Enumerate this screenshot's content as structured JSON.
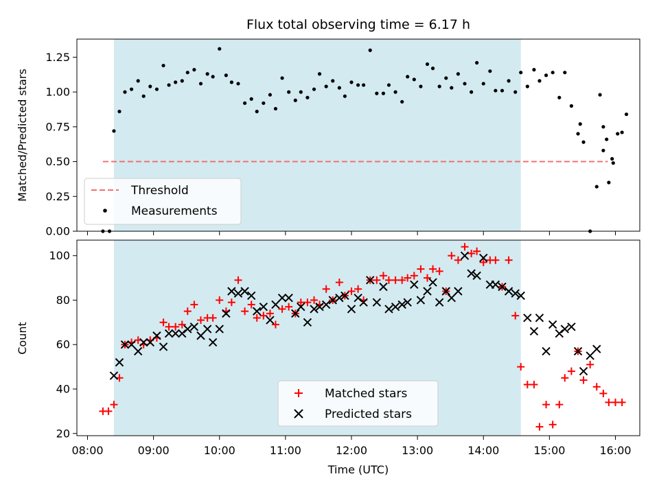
{
  "chart_data": {
    "type": "scatter",
    "title": "Flux total observing time = 6.17 h",
    "xlabel": "Time (UTC)",
    "xlim": [
      "08:00",
      "16:00"
    ],
    "x_ticks": [
      "08:00",
      "09:00",
      "10:00",
      "11:00",
      "12:00",
      "13:00",
      "14:00",
      "15:00",
      "16:00"
    ],
    "observing_window": {
      "start": "08:24",
      "end": "14:34",
      "color": "#d3eaf0"
    },
    "panels": [
      {
        "name": "ratio",
        "ylabel": "Matched/Predicted stars",
        "ylim": [
          0,
          1.38
        ],
        "y_ticks": [
          "0.00",
          "0.25",
          "0.50",
          "0.75",
          "1.00",
          "1.25"
        ],
        "threshold": {
          "name": "Threshold",
          "value": 0.5,
          "x_start": "08:14",
          "x_end": "15:53",
          "color": "#f07070"
        },
        "series": [
          {
            "name": "Measurements",
            "marker": "dot",
            "color": "#000000",
            "x": [
              "08:14",
              "08:20",
              "08:24",
              "08:29",
              "08:34",
              "08:40",
              "08:46",
              "08:51",
              "08:57",
              "09:03",
              "09:09",
              "09:14",
              "09:20",
              "09:26",
              "09:31",
              "09:37",
              "09:43",
              "09:49",
              "09:54",
              "10:00",
              "10:06",
              "10:11",
              "10:17",
              "10:23",
              "10:29",
              "10:34",
              "10:40",
              "10:46",
              "10:51",
              "10:57",
              "11:03",
              "11:09",
              "11:14",
              "11:20",
              "11:26",
              "11:31",
              "11:37",
              "11:43",
              "11:49",
              "11:54",
              "12:00",
              "12:06",
              "12:11",
              "12:17",
              "12:23",
              "12:29",
              "12:34",
              "12:40",
              "12:46",
              "12:51",
              "12:57",
              "13:03",
              "13:09",
              "13:14",
              "13:20",
              "13:26",
              "13:31",
              "13:37",
              "13:43",
              "13:49",
              "13:54",
              "14:00",
              "14:06",
              "14:11",
              "14:17",
              "14:23",
              "14:29",
              "14:34",
              "14:40",
              "14:46",
              "14:51",
              "14:57",
              "15:03",
              "15:09",
              "15:14",
              "15:20",
              "15:26",
              "15:31",
              "15:37",
              "15:43",
              "15:49",
              "15:54",
              "15:58",
              "16:02",
              "16:06",
              "16:10",
              "15:28",
              "15:46",
              "15:49",
              "15:52",
              "15:57"
            ],
            "y": [
              0.0,
              0.0,
              0.72,
              0.86,
              1.0,
              1.02,
              1.08,
              0.97,
              1.04,
              1.02,
              1.19,
              1.05,
              1.07,
              1.08,
              1.14,
              1.16,
              1.06,
              1.13,
              1.11,
              1.31,
              1.12,
              1.07,
              1.06,
              0.92,
              0.95,
              0.86,
              0.92,
              0.98,
              0.88,
              1.1,
              1.0,
              0.94,
              1.0,
              0.96,
              1.02,
              1.13,
              1.04,
              1.08,
              1.03,
              0.97,
              1.07,
              1.05,
              1.05,
              1.3,
              0.99,
              0.99,
              1.05,
              1.0,
              0.93,
              1.11,
              1.09,
              1.04,
              1.2,
              1.17,
              1.04,
              1.1,
              1.03,
              1.13,
              1.06,
              1.0,
              1.21,
              1.06,
              1.15,
              1.01,
              1.01,
              1.08,
              1.0,
              1.14,
              1.04,
              1.16,
              1.08,
              1.12,
              1.14,
              0.96,
              1.14,
              0.9,
              0.7,
              0.64,
              0.0,
              0.32,
              0.58,
              0.35,
              0.49,
              0.7,
              0.71,
              0.84,
              0.77,
              0.98,
              0.75,
              0.66,
              0.52
            ],
            "note_points": "all visible markers"
          }
        ],
        "legend": {
          "placement": "lower-left",
          "entries": [
            "Threshold",
            "Measurements"
          ]
        }
      },
      {
        "name": "counts",
        "ylabel": "Count",
        "ylim": [
          19,
          107
        ],
        "y_ticks": [
          "20",
          "40",
          "60",
          "80",
          "100"
        ],
        "series": [
          {
            "name": "Matched stars",
            "marker": "plus",
            "color": "#ff0000",
            "x": [
              "08:14",
              "08:19",
              "08:24",
              "08:29",
              "08:34",
              "08:40",
              "08:46",
              "08:51",
              "08:57",
              "09:03",
              "09:09",
              "09:14",
              "09:20",
              "09:26",
              "09:31",
              "09:37",
              "09:43",
              "09:49",
              "09:54",
              "10:00",
              "10:06",
              "10:11",
              "10:17",
              "10:23",
              "10:29",
              "10:34",
              "10:40",
              "10:46",
              "10:51",
              "10:57",
              "11:03",
              "11:09",
              "11:14",
              "11:20",
              "11:26",
              "11:31",
              "11:37",
              "11:43",
              "11:49",
              "11:54",
              "12:00",
              "12:06",
              "12:11",
              "12:17",
              "12:23",
              "12:29",
              "12:34",
              "12:40",
              "12:46",
              "12:51",
              "12:57",
              "13:03",
              "13:09",
              "13:14",
              "13:20",
              "13:26",
              "13:31",
              "13:37",
              "13:43",
              "13:49",
              "13:54",
              "14:00",
              "14:06",
              "14:11",
              "14:17",
              "14:23",
              "14:29",
              "14:34",
              "14:40",
              "14:46",
              "14:51",
              "14:57",
              "15:03",
              "15:09",
              "15:14",
              "15:20",
              "15:26",
              "15:31",
              "15:37",
              "15:43",
              "15:49",
              "15:54",
              "16:00",
              "16:06"
            ],
            "y": [
              30,
              30,
              33,
              45,
              60,
              61,
              62,
              60,
              62,
              63,
              70,
              68,
              68,
              69,
              75,
              78,
              71,
              72,
              72,
              80,
              75,
              79,
              89,
              75,
              78,
              72,
              73,
              74,
              69,
              76,
              77,
              74,
              79,
              79,
              80,
              78,
              85,
              80,
              88,
              82,
              84,
              85,
              80,
              89,
              89,
              91,
              89,
              89,
              89,
              90,
              91,
              94,
              90,
              94,
              93,
              84,
              100,
              98,
              104,
              101,
              102,
              97,
              98,
              98,
              86,
              98,
              73,
              50,
              42,
              42,
              23,
              33,
              24,
              33,
              45,
              48,
              57,
              44,
              51,
              41,
              38,
              34,
              34,
              34
            ],
            "note_points": "sampled along trend"
          },
          {
            "name": "Predicted stars",
            "marker": "x",
            "color": "#000000",
            "x": [
              "08:24",
              "08:29",
              "08:34",
              "08:40",
              "08:46",
              "08:51",
              "08:57",
              "09:03",
              "09:09",
              "09:14",
              "09:20",
              "09:26",
              "09:31",
              "09:37",
              "09:43",
              "09:49",
              "09:54",
              "10:00",
              "10:06",
              "10:11",
              "10:17",
              "10:23",
              "10:29",
              "10:34",
              "10:40",
              "10:46",
              "10:51",
              "10:57",
              "11:03",
              "11:09",
              "11:14",
              "11:20",
              "11:26",
              "11:31",
              "11:37",
              "11:43",
              "11:49",
              "11:54",
              "12:00",
              "12:06",
              "12:11",
              "12:17",
              "12:23",
              "12:29",
              "12:34",
              "12:40",
              "12:46",
              "12:51",
              "12:57",
              "13:03",
              "13:09",
              "13:14",
              "13:20",
              "13:26",
              "13:31",
              "13:37",
              "13:43",
              "13:49",
              "13:54",
              "14:00",
              "14:06",
              "14:11",
              "14:17",
              "14:23",
              "14:29",
              "14:34",
              "14:40",
              "14:46",
              "14:51",
              "14:57",
              "15:03",
              "15:09",
              "15:14",
              "15:20",
              "15:26",
              "15:31",
              "15:37",
              "15:43"
            ],
            "y": [
              46,
              52,
              60,
              60,
              57,
              61,
              61,
              64,
              59,
              65,
              65,
              65,
              67,
              68,
              64,
              67,
              61,
              67,
              74,
              84,
              83,
              84,
              82,
              75,
              77,
              71,
              78,
              81,
              81,
              74,
              77,
              70,
              76,
              77,
              78,
              80,
              81,
              82,
              76,
              81,
              79,
              89,
              79,
              86,
              76,
              77,
              78,
              79,
              87,
              80,
              84,
              88,
              79,
              84,
              81,
              84,
              100,
              92,
              91,
              99,
              87,
              87,
              86,
              84,
              83,
              82,
              72,
              66,
              72,
              57,
              69,
              65,
              67,
              68,
              57,
              48,
              55,
              58
            ],
            "note_points": "sampled along trend"
          }
        ],
        "legend": {
          "placement": "lower-center",
          "entries": [
            "Matched stars",
            "Predicted stars"
          ]
        }
      }
    ],
    "grid": false
  }
}
